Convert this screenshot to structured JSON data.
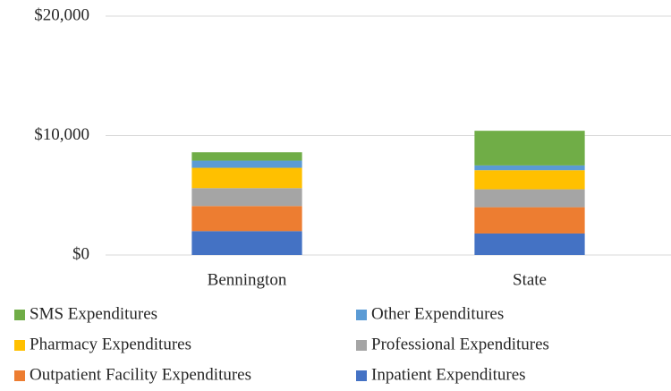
{
  "chart_data": {
    "type": "stacked_bar",
    "categories": [
      "Bennington",
      "State"
    ],
    "series": [
      {
        "name": "Inpatient Expenditures",
        "color": "#4472c4",
        "values": [
          2000,
          1800
        ]
      },
      {
        "name": "Outpatient Facility Expenditures",
        "color": "#ed7d31",
        "values": [
          2100,
          2200
        ]
      },
      {
        "name": "Professional Expenditures",
        "color": "#a5a5a5",
        "values": [
          1500,
          1500
        ]
      },
      {
        "name": "Pharmacy Expenditures",
        "color": "#ffc000",
        "values": [
          1700,
          1600
        ]
      },
      {
        "name": "Other Expenditures",
        "color": "#5b9bd5",
        "values": [
          600,
          400
        ]
      },
      {
        "name": "SMS Expenditures",
        "color": "#70ad47",
        "values": [
          700,
          2900
        ]
      }
    ],
    "ylim": [
      0,
      20000
    ],
    "yticks": [
      {
        "value": 0,
        "label": "$0"
      },
      {
        "value": 10000,
        "label": "$10,000"
      },
      {
        "value": 20000,
        "label": "$20,000"
      }
    ],
    "grid": true
  }
}
